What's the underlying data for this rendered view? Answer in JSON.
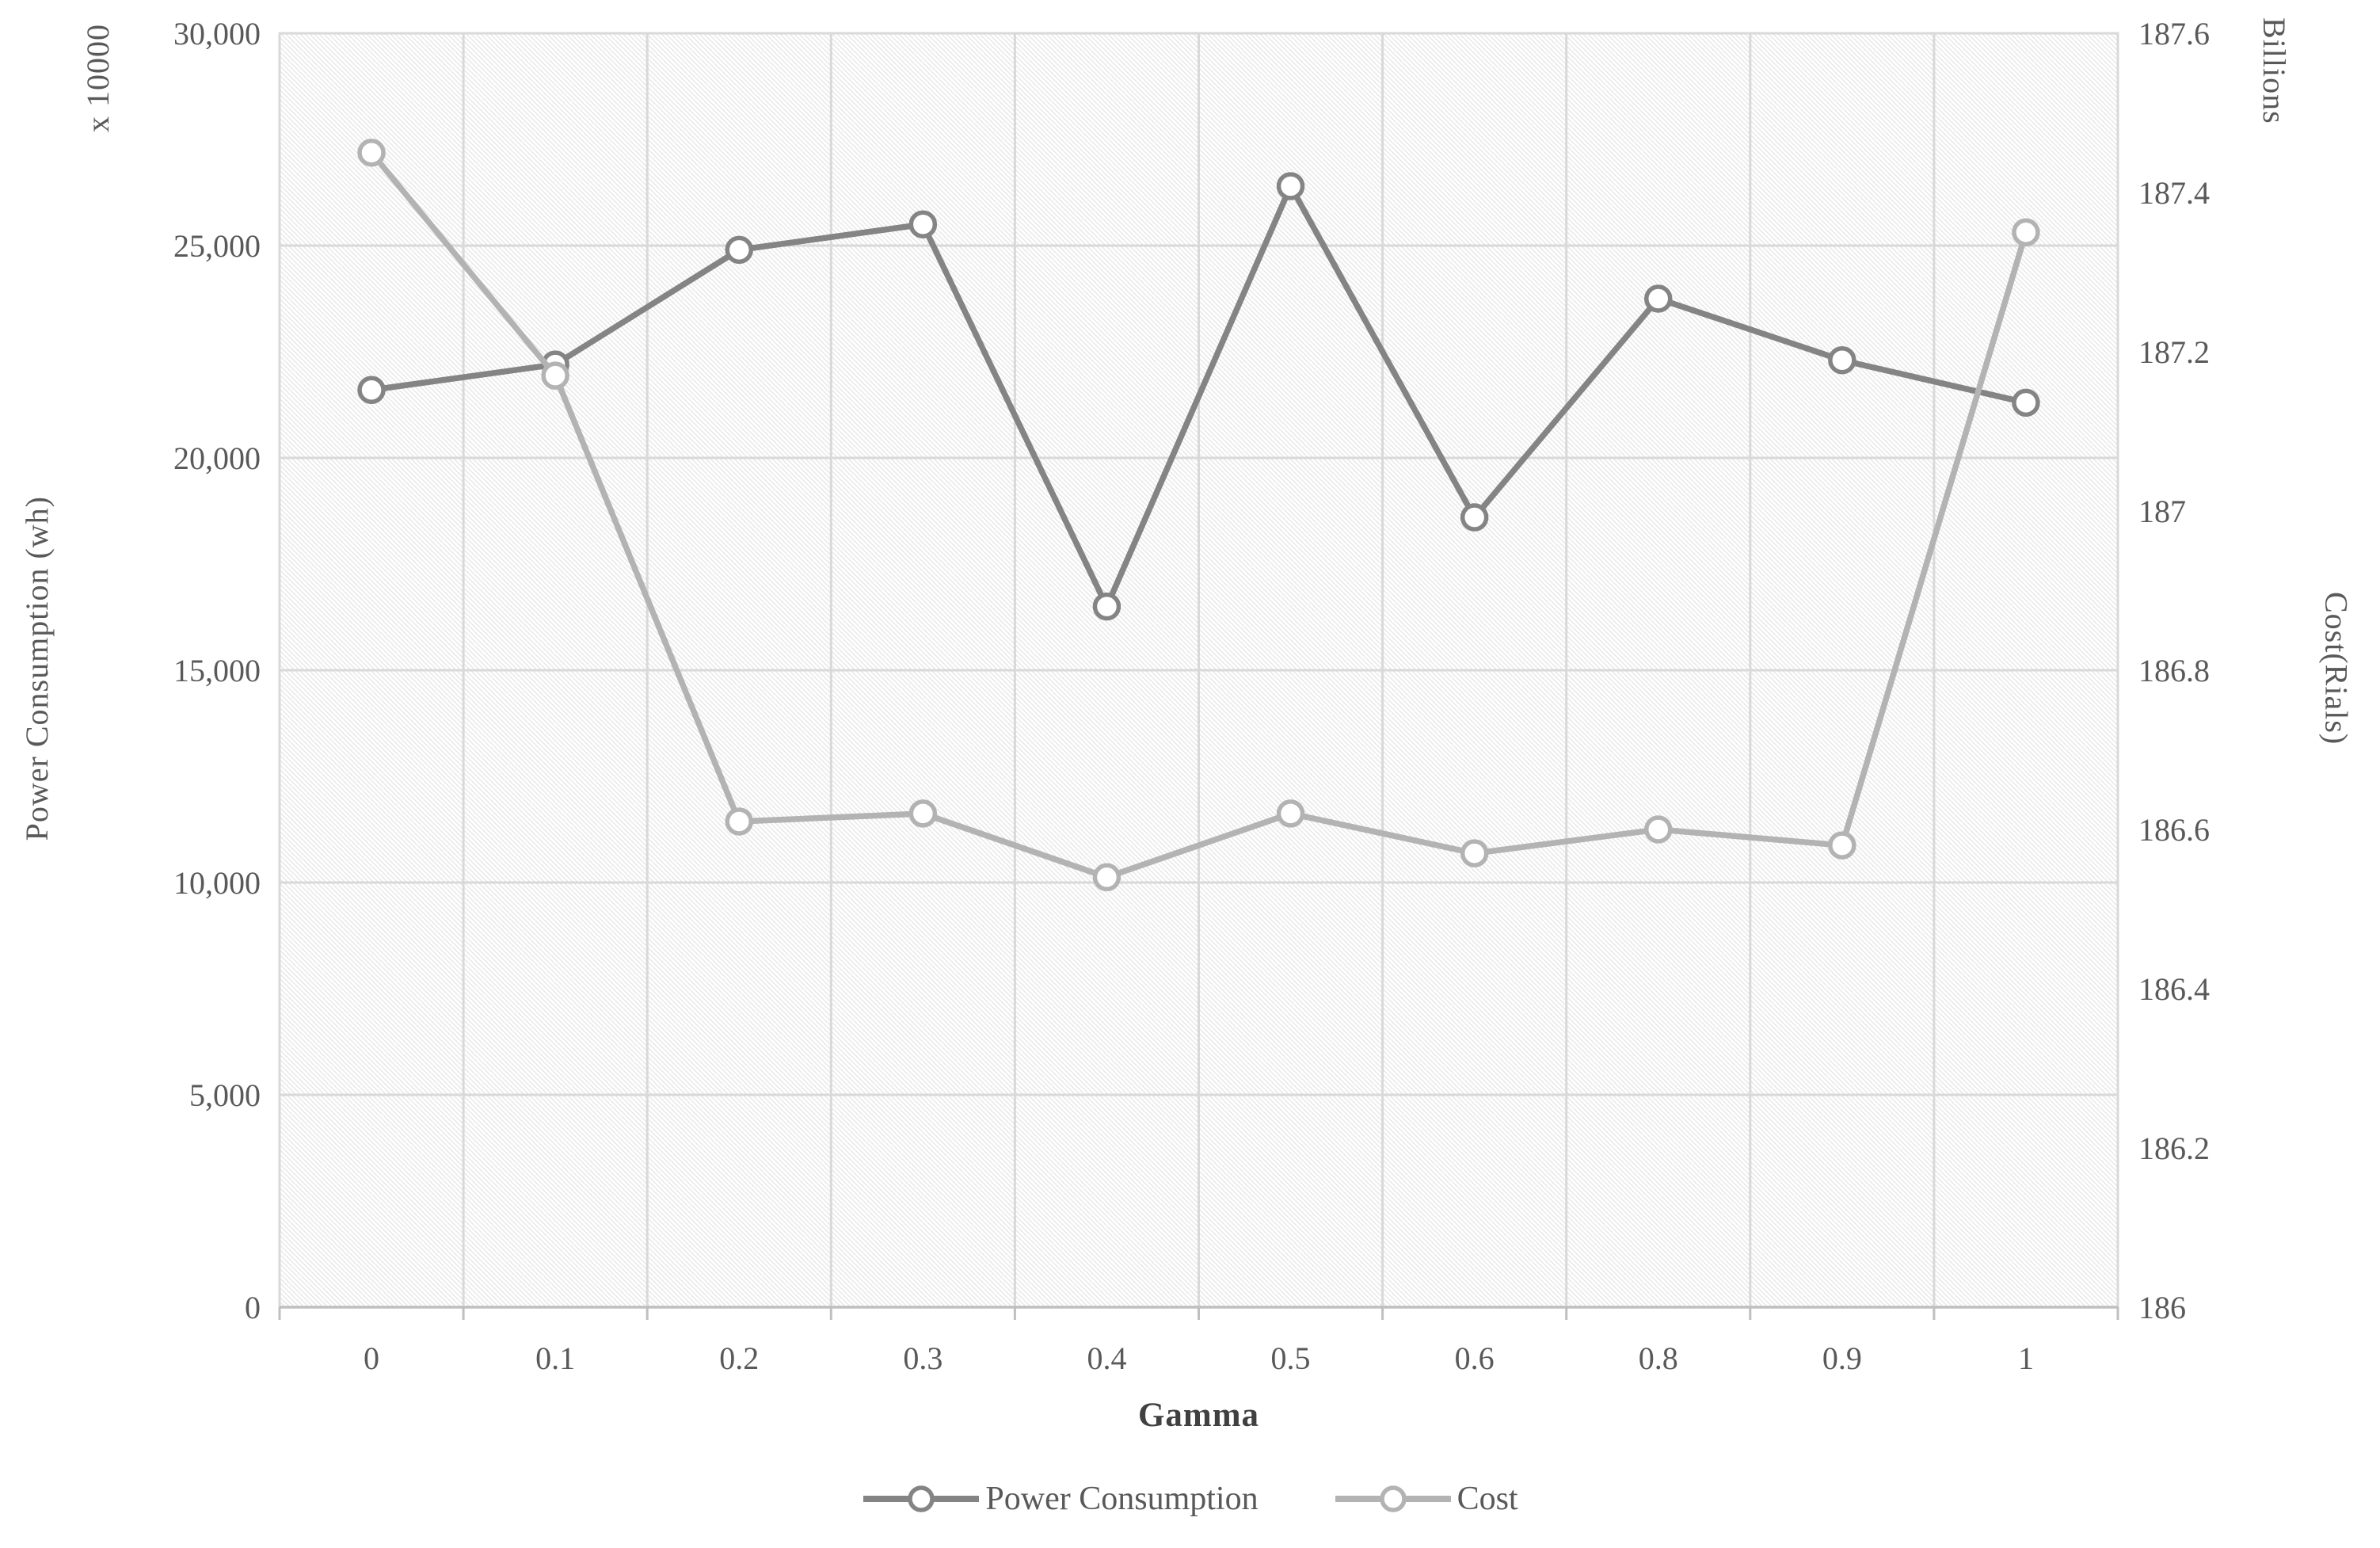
{
  "page": {
    "background": "#FFFFFF"
  },
  "chart_data": {
    "type": "line",
    "title": "",
    "xlabel": "Gamma",
    "x": [
      0,
      0.1,
      0.2,
      0.3,
      0.4,
      0.5,
      0.6,
      0.8,
      0.9,
      1
    ],
    "x_tick_labels": [
      "0",
      "0.1",
      "0.2",
      "0.3",
      "0.4",
      "0.5",
      "0.6",
      "0.8",
      "0.9",
      "1"
    ],
    "series": [
      {
        "name": "Power Consumption",
        "axis": "left",
        "color": "#848484",
        "marker": "circle",
        "values": [
          21600,
          22200,
          24900,
          25500,
          16500,
          26400,
          18600,
          23750,
          22300,
          21300
        ]
      },
      {
        "name": "Cost",
        "axis": "right",
        "color": "#B3B3B3",
        "marker": "circle",
        "values": [
          187.45,
          187.17,
          186.61,
          186.62,
          186.54,
          186.62,
          186.57,
          186.6,
          186.58,
          187.35
        ]
      }
    ],
    "left_axis": {
      "title": "Power Consumption (wh)",
      "unit_label": "x 10000",
      "min": 0,
      "max": 30000,
      "step": 5000,
      "tick_labels": [
        "0",
        "5,000",
        "10,000",
        "15,000",
        "20,000",
        "25,000",
        "30,000"
      ]
    },
    "right_axis": {
      "title": "Cost(Rials)",
      "unit_label": "Billions",
      "min": 186,
      "max": 187.6,
      "step": 0.2,
      "tick_labels": [
        "186",
        "186.2",
        "186.4",
        "186.6",
        "186.8",
        "187",
        "187.2",
        "187.4",
        "187.6"
      ]
    },
    "legend": [
      "Power Consumption",
      "Cost"
    ],
    "legend_position": "bottom",
    "grid": true,
    "plot_bg_pattern": "diagonal-hatch",
    "colors": {
      "grid": "#D9D9D9",
      "axis_line": "#BFBFBF",
      "hatch": "#E8E8E8",
      "tick_text": "#595959",
      "marker_fill": "#FFFFFF"
    }
  }
}
